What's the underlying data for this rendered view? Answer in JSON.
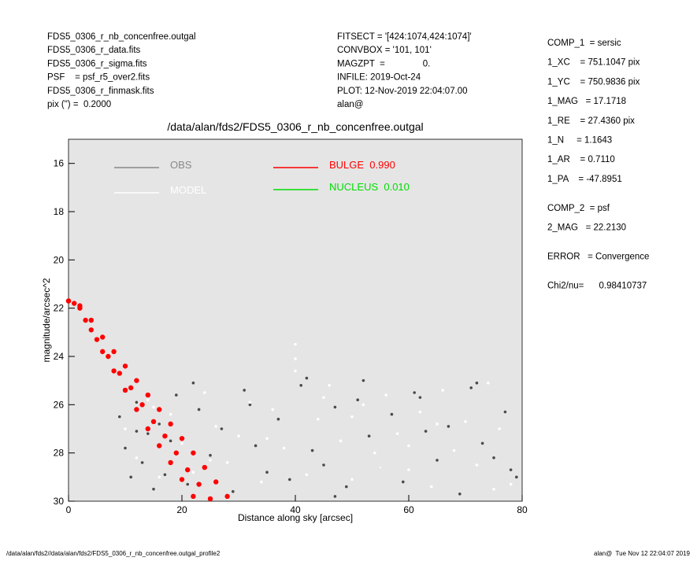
{
  "header_left": [
    "FDS5_0306_r_nb_concenfree.outgal",
    "FDS5_0306_r_data.fits",
    "FDS5_0306_r_sigma.fits",
    "PSF    = psf_r5_over2.fits",
    "FDS5_0306_r_finmask.fits",
    "pix (\") =  0.2000"
  ],
  "header_mid": [
    "FITSECT = '[424:1074,424:1074]'",
    "CONVBOX = '101, 101'",
    "MAGZPT  =               0.",
    "INFILE: 2019-Oct-24",
    "PLOT: 12-Nov-2019 22:04:07.00",
    "alan@"
  ],
  "parameters": [
    [
      "COMP_1  = sersic",
      "1_XC    = 751.1047 pix",
      "1_YC    = 750.9836 pix",
      "1_MAG   = 17.1718",
      "1_RE    = 27.4360 pix",
      "1_N     = 1.1643",
      "1_AR    = 0.7110",
      "1_PA    = -47.8951"
    ],
    [
      "COMP_2  = psf",
      "2_MAG   = 22.2130"
    ],
    [
      "ERROR   = Convergence"
    ],
    [
      "Chi2/nu=      0.98410737"
    ]
  ],
  "footer_left": "/data/alan/fds2//data/alan/fds2/FDS5_0306_r_nb_concenfree.outgal_profile2",
  "footer_right": "alan@  Tue Nov 12 22:04:07 2019",
  "chart_data": {
    "type": "scatter",
    "title": "/data/alan/fds2/FDS5_0306_r_nb_concenfree.outgal",
    "x_label": "Distance along sky [arcsec]",
    "y_label": "magnitude/arcsec^2",
    "xlim": [
      0,
      80
    ],
    "ylim": [
      15,
      30
    ],
    "y_inverted": true,
    "xticks": [
      0,
      20,
      40,
      60,
      80
    ],
    "yticks": [
      16,
      18,
      20,
      22,
      24,
      26,
      28,
      30
    ],
    "background": "#e5e5e5",
    "series": [
      {
        "name": "OBS",
        "color": "#888888",
        "point_color": "#4a4a4a",
        "x": [
          9,
          10,
          11,
          12,
          13,
          14,
          15,
          16,
          17,
          18,
          19,
          21,
          23,
          25,
          27,
          29,
          31,
          33,
          35,
          37,
          39,
          41,
          43,
          45,
          47,
          49,
          51,
          53,
          55,
          57,
          59,
          61,
          63,
          65,
          67,
          69,
          71,
          73,
          75,
          77,
          79,
          12,
          22,
          32,
          42,
          52,
          62,
          72,
          78,
          47
        ],
        "values": [
          26.5,
          27.8,
          29.0,
          25.9,
          28.4,
          27.2,
          29.5,
          26.8,
          28.9,
          27.5,
          25.6,
          29.3,
          26.2,
          28.1,
          27.0,
          29.6,
          25.4,
          27.7,
          28.8,
          26.6,
          29.1,
          25.2,
          27.9,
          28.5,
          26.1,
          29.4,
          25.8,
          27.3,
          28.6,
          26.4,
          29.2,
          25.5,
          27.1,
          28.3,
          26.9,
          29.7,
          25.3,
          27.6,
          28.2,
          26.3,
          29.0,
          27.1,
          25.1,
          26.0,
          24.9,
          25.0,
          25.7,
          25.1,
          28.7,
          29.8
        ]
      },
      {
        "name": "MODEL",
        "color": "#ffffff",
        "point_color": "#ffffff",
        "x": [
          10,
          12,
          14,
          16,
          18,
          20,
          22,
          24,
          26,
          28,
          30,
          32,
          34,
          36,
          38,
          40,
          40,
          40,
          42,
          44,
          46,
          48,
          50,
          52,
          54,
          56,
          58,
          60,
          62,
          64,
          66,
          68,
          70,
          72,
          74,
          76,
          78,
          15,
          25,
          35,
          45,
          55,
          65,
          75,
          50,
          60
        ],
        "values": [
          27.0,
          28.2,
          25.8,
          29.0,
          26.4,
          27.6,
          28.8,
          25.5,
          26.9,
          28.4,
          27.3,
          25.9,
          29.2,
          26.2,
          27.8,
          23.5,
          24.1,
          24.6,
          28.9,
          26.6,
          25.2,
          27.5,
          29.1,
          26.0,
          28.0,
          25.6,
          27.2,
          28.7,
          26.3,
          29.4,
          25.4,
          27.9,
          26.7,
          28.5,
          25.1,
          27.0,
          29.3,
          26.1,
          28.3,
          27.4,
          25.7,
          28.6,
          26.8,
          29.5,
          26.5,
          27.7
        ]
      },
      {
        "name": "BULGE  0.990",
        "color": "#ff0000",
        "point_color": "#ff0000",
        "x": [
          0,
          2,
          4,
          6,
          8,
          10,
          12,
          14,
          16,
          18,
          20,
          22,
          24,
          26,
          28,
          0,
          2,
          4,
          6,
          8,
          10,
          12,
          14,
          16,
          18,
          20,
          22,
          1,
          3,
          5,
          7,
          9,
          11,
          13,
          15,
          17,
          19,
          21,
          23,
          25
        ],
        "values": [
          21.7,
          21.9,
          22.5,
          23.2,
          23.8,
          24.4,
          25.0,
          25.6,
          26.2,
          26.8,
          27.4,
          28.0,
          28.6,
          29.2,
          29.8,
          21.7,
          22.0,
          22.9,
          23.8,
          24.6,
          25.4,
          26.2,
          27.0,
          27.7,
          28.4,
          29.1,
          29.8,
          21.8,
          22.5,
          23.3,
          24.0,
          24.7,
          25.3,
          26.0,
          26.7,
          27.3,
          28.0,
          28.7,
          29.3,
          29.9
        ]
      },
      {
        "name": "NUCLEUS  0.010",
        "color": "#00dd00",
        "point_color": "#00dd00",
        "x": [],
        "values": []
      }
    ]
  }
}
